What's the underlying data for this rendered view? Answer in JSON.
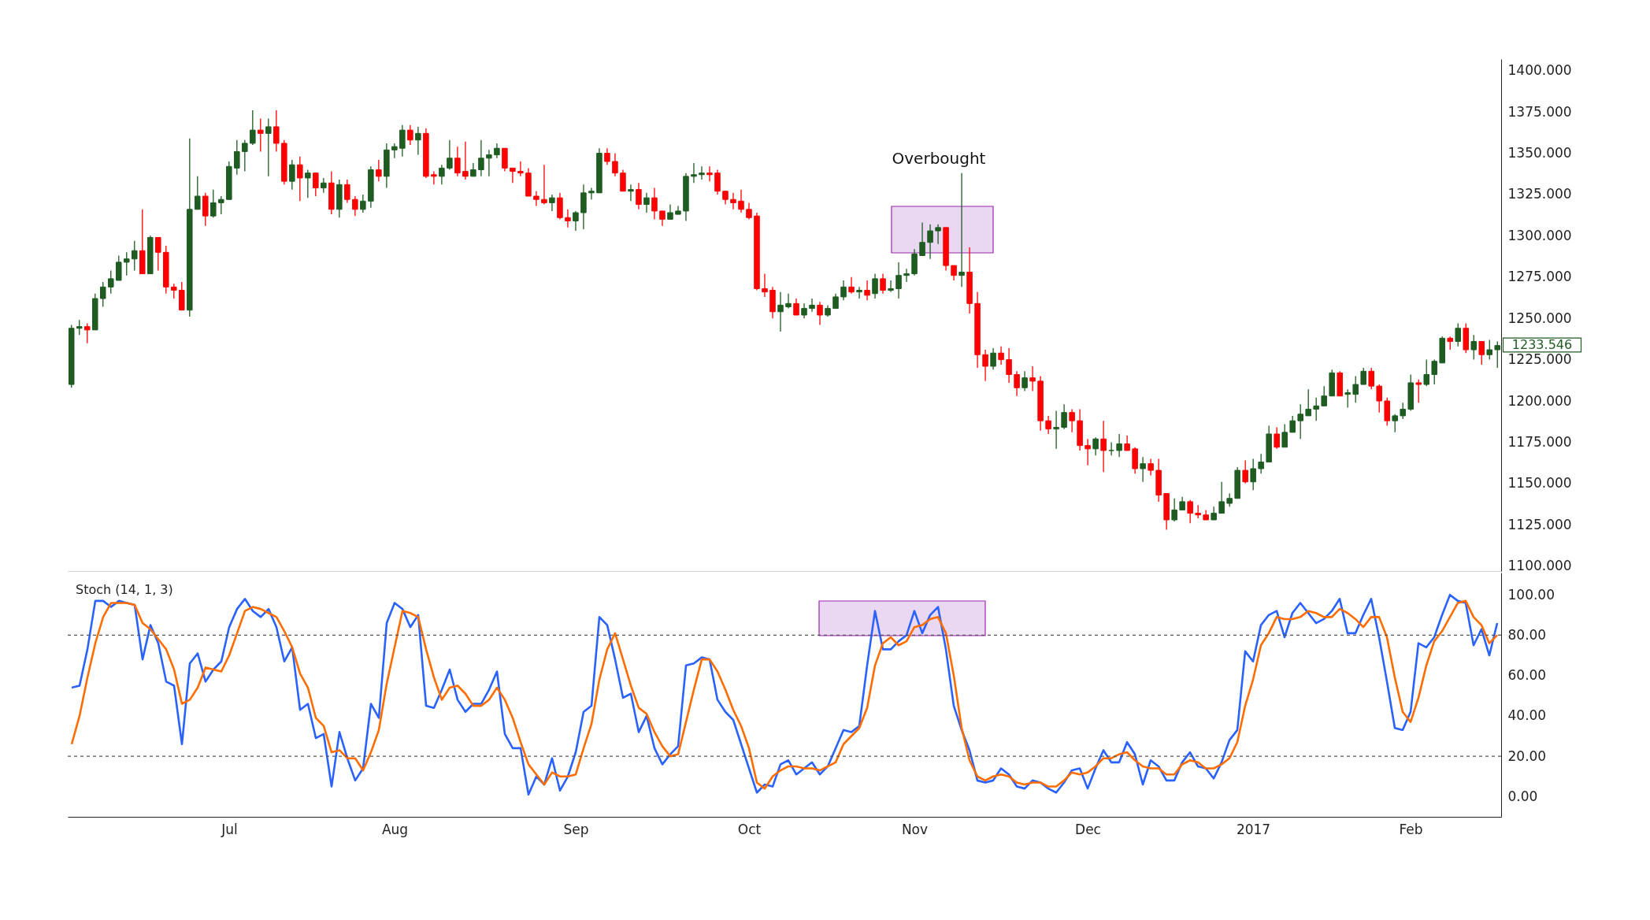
{
  "chart_data": [
    {
      "type": "candlestick",
      "categories": [
        null,
        null,
        null,
        null,
        null,
        null,
        null,
        null,
        null,
        null,
        null,
        null,
        null,
        null,
        null,
        null,
        null,
        null,
        null,
        null,
        null,
        null,
        null,
        null,
        null,
        null,
        null,
        null,
        null,
        null,
        null,
        null,
        null,
        null,
        null,
        null,
        null,
        null,
        null,
        null,
        null,
        null,
        null,
        null,
        null,
        null,
        null,
        null,
        null,
        null,
        null,
        null,
        null,
        null,
        null,
        null,
        null,
        null,
        null,
        null,
        null,
        null,
        null,
        null,
        null,
        null,
        null,
        null,
        null,
        null,
        null,
        null,
        null,
        null,
        null,
        null,
        null,
        null,
        null,
        null,
        null,
        null,
        null,
        null,
        null,
        null,
        null,
        null,
        null,
        null,
        null,
        null,
        null,
        null,
        null,
        null,
        null,
        null,
        null,
        null,
        null,
        null,
        null,
        null,
        null,
        null,
        null,
        null,
        null,
        null,
        null,
        null,
        null,
        null,
        null,
        null,
        null,
        null,
        null,
        null,
        null,
        null,
        null,
        null,
        null,
        null,
        null,
        null,
        null,
        null,
        null,
        null,
        null,
        null,
        null,
        null,
        null,
        null,
        null,
        null,
        null,
        null,
        null,
        null,
        null,
        null,
        null,
        null,
        null,
        null,
        null,
        null,
        null,
        null,
        null,
        null,
        null,
        null,
        null,
        null,
        null,
        null,
        null,
        null,
        null,
        null,
        null,
        null,
        null,
        null,
        null,
        null,
        null,
        null,
        null,
        null,
        null,
        null,
        null,
        null,
        null,
        null
      ],
      "ohlc": [
        [
          1210,
          1246,
          1208,
          1244
        ],
        [
          1244,
          1249,
          1240,
          1245
        ],
        [
          1245,
          1247,
          1235,
          1243
        ],
        [
          1243,
          1265,
          1243,
          1262
        ],
        [
          1262,
          1272,
          1257,
          1269
        ],
        [
          1269,
          1279,
          1265,
          1274
        ],
        [
          1273,
          1288,
          1273,
          1284
        ],
        [
          1284,
          1290,
          1276,
          1286
        ],
        [
          1286,
          1297,
          1279,
          1291
        ],
        [
          1291,
          1316,
          1277,
          1277
        ],
        [
          1277,
          1300,
          1277,
          1299
        ],
        [
          1299,
          1299,
          1279,
          1290
        ],
        [
          1290,
          1294,
          1265,
          1269
        ],
        [
          1269,
          1271,
          1262,
          1267
        ],
        [
          1267,
          1272,
          1255,
          1255
        ],
        [
          1255,
          1359,
          1251,
          1316
        ],
        [
          1316,
          1336,
          1316,
          1324
        ],
        [
          1324,
          1326,
          1306,
          1312
        ],
        [
          1312,
          1328,
          1311,
          1320
        ],
        [
          1320,
          1324,
          1313,
          1322
        ],
        [
          1322,
          1345,
          1322,
          1342
        ],
        [
          1341,
          1358,
          1337,
          1351
        ],
        [
          1351,
          1358,
          1339,
          1356
        ],
        [
          1356,
          1376,
          1355,
          1364
        ],
        [
          1364,
          1371,
          1351,
          1362
        ],
        [
          1362,
          1371,
          1336,
          1366
        ],
        [
          1366,
          1376,
          1351,
          1356
        ],
        [
          1356,
          1358,
          1331,
          1333
        ],
        [
          1333,
          1346,
          1328,
          1343
        ],
        [
          1343,
          1348,
          1321,
          1335
        ],
        [
          1335,
          1340,
          1323,
          1338
        ],
        [
          1338,
          1338,
          1324,
          1329
        ],
        [
          1329,
          1335,
          1326,
          1332
        ],
        [
          1332,
          1339,
          1313,
          1316
        ],
        [
          1316,
          1334,
          1311,
          1331
        ],
        [
          1331,
          1334,
          1320,
          1322
        ],
        [
          1322,
          1324,
          1312,
          1316
        ],
        [
          1316,
          1325,
          1314,
          1321
        ],
        [
          1321,
          1342,
          1317,
          1340
        ],
        [
          1340,
          1346,
          1333,
          1336
        ],
        [
          1336,
          1356,
          1329,
          1352
        ],
        [
          1352,
          1356,
          1347,
          1354
        ],
        [
          1353,
          1367,
          1348,
          1364
        ],
        [
          1364,
          1367,
          1355,
          1358
        ],
        [
          1358,
          1366,
          1349,
          1362
        ],
        [
          1362,
          1365,
          1335,
          1336
        ],
        [
          1337,
          1339,
          1331,
          1336
        ],
        [
          1336,
          1343,
          1331,
          1341
        ],
        [
          1341,
          1358,
          1340,
          1347
        ],
        [
          1347,
          1354,
          1336,
          1338
        ],
        [
          1339,
          1357,
          1334,
          1336
        ],
        [
          1336,
          1344,
          1336,
          1340
        ],
        [
          1340,
          1358,
          1336,
          1347
        ],
        [
          1347,
          1352,
          1336,
          1349
        ],
        [
          1349,
          1356,
          1347,
          1353
        ],
        [
          1353,
          1353,
          1339,
          1341
        ],
        [
          1341,
          1341,
          1332,
          1339
        ],
        [
          1339,
          1345,
          1336,
          1338
        ],
        [
          1338,
          1341,
          1324,
          1324
        ],
        [
          1324,
          1327,
          1318,
          1322
        ],
        [
          1322,
          1343,
          1319,
          1320
        ],
        [
          1320,
          1325,
          1315,
          1323
        ],
        [
          1323,
          1326,
          1310,
          1311
        ],
        [
          1311,
          1316,
          1305,
          1309
        ],
        [
          1309,
          1315,
          1303,
          1314
        ],
        [
          1314,
          1331,
          1304,
          1326
        ],
        [
          1326,
          1329,
          1322,
          1327
        ],
        [
          1326,
          1353,
          1326,
          1350
        ],
        [
          1350,
          1353,
          1343,
          1345
        ],
        [
          1345,
          1350,
          1336,
          1338
        ],
        [
          1338,
          1340,
          1327,
          1327
        ],
        [
          1327,
          1331,
          1321,
          1328
        ],
        [
          1328,
          1332,
          1316,
          1319
        ],
        [
          1319,
          1326,
          1314,
          1323
        ],
        [
          1323,
          1329,
          1310,
          1315
        ],
        [
          1315,
          1315,
          1306,
          1310
        ],
        [
          1310,
          1319,
          1310,
          1314
        ],
        [
          1313,
          1318,
          1313,
          1315
        ],
        [
          1315,
          1338,
          1309,
          1336
        ],
        [
          1336,
          1344,
          1332,
          1337
        ],
        [
          1337,
          1342,
          1334,
          1338
        ],
        [
          1338,
          1342,
          1333,
          1337
        ],
        [
          1338,
          1340,
          1325,
          1327
        ],
        [
          1327,
          1327,
          1319,
          1322
        ],
        [
          1322,
          1326,
          1316,
          1320
        ],
        [
          1321,
          1328,
          1314,
          1316
        ],
        [
          1316,
          1320,
          1310,
          1311
        ],
        [
          1312,
          1314,
          1267,
          1268
        ],
        [
          1268,
          1277,
          1263,
          1266
        ],
        [
          1267,
          1269,
          1250,
          1254
        ],
        [
          1254,
          1266,
          1242,
          1258
        ],
        [
          1257,
          1265,
          1256,
          1259
        ],
        [
          1259,
          1262,
          1252,
          1252
        ],
        [
          1252,
          1259,
          1250,
          1256
        ],
        [
          1256,
          1262,
          1254,
          1258
        ],
        [
          1258,
          1260,
          1246,
          1252
        ],
        [
          1252,
          1258,
          1251,
          1256
        ],
        [
          1256,
          1265,
          1256,
          1263
        ],
        [
          1263,
          1273,
          1261,
          1269
        ],
        [
          1269,
          1275,
          1265,
          1266
        ],
        [
          1266,
          1269,
          1262,
          1267
        ],
        [
          1267,
          1273,
          1261,
          1264
        ],
        [
          1265,
          1277,
          1262,
          1274
        ],
        [
          1274,
          1277,
          1265,
          1267
        ],
        [
          1267,
          1273,
          1266,
          1268
        ],
        [
          1268,
          1284,
          1262,
          1276
        ],
        [
          1276,
          1280,
          1272,
          1277
        ],
        [
          1277,
          1292,
          1276,
          1289
        ],
        [
          1288,
          1308,
          1288,
          1296
        ],
        [
          1296,
          1307,
          1286,
          1303
        ],
        [
          1303,
          1307,
          1295,
          1305
        ],
        [
          1305,
          1305,
          1279,
          1282
        ],
        [
          1282,
          1282,
          1273,
          1276
        ],
        [
          1276,
          1338,
          1269,
          1278
        ],
        [
          1278,
          1293,
          1253,
          1259
        ],
        [
          1259,
          1266,
          1220,
          1228
        ],
        [
          1228,
          1231,
          1212,
          1221
        ],
        [
          1221,
          1232,
          1219,
          1229
        ],
        [
          1229,
          1233,
          1222,
          1225
        ],
        [
          1225,
          1232,
          1211,
          1216
        ],
        [
          1216,
          1218,
          1203,
          1208
        ],
        [
          1208,
          1218,
          1206,
          1214
        ],
        [
          1214,
          1221,
          1206,
          1212
        ],
        [
          1212,
          1215,
          1182,
          1188
        ],
        [
          1188,
          1191,
          1180,
          1183
        ],
        [
          1183,
          1194,
          1171,
          1184
        ],
        [
          1184,
          1198,
          1183,
          1193
        ],
        [
          1193,
          1195,
          1181,
          1188
        ],
        [
          1188,
          1195,
          1170,
          1173
        ],
        [
          1173,
          1177,
          1161,
          1171
        ],
        [
          1171,
          1178,
          1167,
          1177
        ],
        [
          1177,
          1188,
          1157,
          1170
        ],
        [
          1170,
          1175,
          1167,
          1170
        ],
        [
          1170,
          1180,
          1166,
          1174
        ],
        [
          1174,
          1179,
          1170,
          1170
        ],
        [
          1171,
          1172,
          1156,
          1159
        ],
        [
          1159,
          1166,
          1151,
          1162
        ],
        [
          1162,
          1165,
          1155,
          1158
        ],
        [
          1158,
          1165,
          1139,
          1143
        ],
        [
          1144,
          1144,
          1122,
          1128
        ],
        [
          1128,
          1141,
          1127,
          1134
        ],
        [
          1134,
          1142,
          1134,
          1139
        ],
        [
          1139,
          1140,
          1126,
          1132
        ],
        [
          1132,
          1137,
          1129,
          1131
        ],
        [
          1131,
          1134,
          1128,
          1128
        ],
        [
          1128,
          1136,
          1128,
          1132
        ],
        [
          1132,
          1151,
          1132,
          1139
        ],
        [
          1138,
          1144,
          1136,
          1141
        ],
        [
          1141,
          1160,
          1141,
          1158
        ],
        [
          1158,
          1164,
          1150,
          1151
        ],
        [
          1151,
          1165,
          1146,
          1159
        ],
        [
          1159,
          1168,
          1156,
          1163
        ],
        [
          1163,
          1185,
          1163,
          1180
        ],
        [
          1180,
          1184,
          1171,
          1172
        ],
        [
          1172,
          1186,
          1172,
          1181
        ],
        [
          1181,
          1191,
          1181,
          1188
        ],
        [
          1188,
          1198,
          1177,
          1192
        ],
        [
          1191,
          1207,
          1191,
          1195
        ],
        [
          1195,
          1202,
          1188,
          1197
        ],
        [
          1197,
          1209,
          1197,
          1203
        ],
        [
          1203,
          1219,
          1203,
          1217
        ],
        [
          1217,
          1218,
          1203,
          1203
        ],
        [
          1204,
          1207,
          1196,
          1205
        ],
        [
          1204,
          1215,
          1199,
          1210
        ],
        [
          1210,
          1220,
          1210,
          1218
        ],
        [
          1218,
          1220,
          1207,
          1209
        ],
        [
          1209,
          1210,
          1193,
          1200
        ],
        [
          1200,
          1202,
          1185,
          1188
        ],
        [
          1188,
          1192,
          1181,
          1191
        ],
        [
          1191,
          1199,
          1189,
          1195
        ],
        [
          1195,
          1216,
          1194,
          1211
        ],
        [
          1211,
          1213,
          1199,
          1210
        ],
        [
          1210,
          1225,
          1209,
          1216
        ],
        [
          1216,
          1225,
          1210,
          1224
        ],
        [
          1223,
          1239,
          1223,
          1238
        ],
        [
          1238,
          1239,
          1231,
          1236
        ],
        [
          1236,
          1247,
          1233,
          1244
        ],
        [
          1244,
          1247,
          1229,
          1231
        ],
        [
          1231,
          1240,
          1225,
          1236
        ],
        [
          1236,
          1236,
          1222,
          1228
        ],
        [
          1228,
          1237,
          1225,
          1231
        ],
        [
          1231,
          1236,
          1220,
          1233.546
        ]
      ],
      "ylim": [
        1097,
        1407
      ],
      "yticks": [
        {
          "value": 1100,
          "label": "1100.000"
        },
        {
          "value": 1125,
          "label": "1125.000"
        },
        {
          "value": 1150,
          "label": "1150.000"
        },
        {
          "value": 1175,
          "label": "1175.000"
        },
        {
          "value": 1200,
          "label": "1200.000"
        },
        {
          "value": 1225,
          "label": "1225.000"
        },
        {
          "value": 1250,
          "label": "1250.000"
        },
        {
          "value": 1275,
          "label": "1275.000"
        },
        {
          "value": 1300,
          "label": "1300.000"
        },
        {
          "value": 1325,
          "label": "1325.000"
        },
        {
          "value": 1350,
          "label": "1350.000"
        },
        {
          "value": 1375,
          "label": "1375.000"
        },
        {
          "value": 1400,
          "label": "1400.000"
        }
      ],
      "tick_labels": "y",
      "grid": false,
      "annotations": [
        "Overbought",
        "1233.546"
      ]
    },
    {
      "type": "line",
      "title": "Stoch (14, 1, 3)",
      "categories": [
        null,
        null,
        null,
        null,
        null,
        null,
        null,
        null,
        null,
        null,
        null,
        null,
        null,
        null,
        null,
        null,
        null,
        null,
        null,
        null,
        "Jul",
        null,
        null,
        null,
        null,
        null,
        null,
        null,
        null,
        null,
        null,
        null,
        null,
        null,
        null,
        null,
        null,
        null,
        null,
        null,
        null,
        "Aug",
        null,
        null,
        null,
        null,
        null,
        null,
        null,
        null,
        null,
        null,
        null,
        null,
        null,
        null,
        null,
        null,
        null,
        null,
        null,
        null,
        null,
        null,
        "Sep",
        null,
        null,
        null,
        null,
        null,
        null,
        null,
        null,
        null,
        null,
        null,
        null,
        null,
        null,
        null,
        null,
        null,
        null,
        null,
        null,
        null,
        "Oct",
        null,
        null,
        null,
        null,
        null,
        null,
        null,
        null,
        null,
        null,
        null,
        null,
        null,
        null,
        null,
        null,
        null,
        null,
        null,
        null,
        "Nov",
        null,
        null,
        null,
        null,
        null,
        null,
        null,
        null,
        null,
        null,
        null,
        null,
        null,
        null,
        null,
        null,
        null,
        null,
        null,
        null,
        null,
        "Dec",
        null,
        null,
        null,
        null,
        null,
        null,
        null,
        null,
        null,
        null,
        null,
        null,
        null,
        null,
        null,
        null,
        null,
        null,
        null,
        null,
        "2017",
        null,
        null,
        null,
        null,
        null,
        null,
        null,
        null,
        null,
        null,
        null,
        null,
        null,
        null,
        null,
        null,
        null,
        null,
        null,
        "Feb",
        null,
        null,
        null,
        null,
        null,
        null,
        null,
        null,
        null,
        null,
        null
      ],
      "series": [
        {
          "color": "#2962ff",
          "values": [
            54,
            55,
            73,
            97,
            97,
            94,
            97,
            96,
            95,
            68,
            85,
            76,
            57,
            55,
            26,
            66,
            71,
            57,
            63,
            67,
            84,
            93,
            98,
            92,
            89,
            93,
            84,
            67,
            74,
            43,
            46,
            29,
            31,
            5,
            32,
            19,
            8,
            14,
            46,
            39,
            86,
            96,
            93,
            84,
            90,
            45,
            44,
            53,
            63,
            48,
            42,
            46,
            46,
            53,
            62,
            31,
            24,
            24,
            1,
            10,
            6,
            19,
            3,
            10,
            22,
            42,
            45,
            89,
            85,
            68,
            49,
            51,
            32,
            40,
            24,
            16,
            21,
            25,
            65,
            66,
            69,
            68,
            48,
            42,
            38,
            26,
            14,
            2,
            6,
            5,
            16,
            18,
            11,
            14,
            17,
            11,
            15,
            24,
            33,
            32,
            35,
            65,
            92,
            73,
            73,
            77,
            80,
            92,
            81,
            90,
            94,
            73,
            45,
            33,
            23,
            8,
            7,
            8,
            14,
            11,
            5,
            4,
            8,
            7,
            4,
            2,
            7,
            13,
            14,
            4,
            14,
            23,
            17,
            17,
            27,
            21,
            6,
            18,
            15,
            8,
            8,
            17,
            22,
            15,
            14,
            9,
            17,
            28,
            33,
            72,
            67,
            85,
            90,
            92,
            79,
            91,
            96,
            91,
            86,
            88,
            92,
            98,
            81,
            81,
            90,
            98,
            79,
            57,
            34,
            33,
            42,
            76,
            74,
            79,
            90,
            100,
            97,
            96,
            75,
            83,
            70,
            86
          ]
        },
        {
          "color": "#ff6d00",
          "values": [
            26,
            40,
            59,
            76,
            89,
            96,
            96,
            96,
            95,
            86,
            83,
            78,
            73,
            63,
            46,
            48,
            54,
            64,
            63,
            62,
            70,
            81,
            92,
            94,
            93,
            91,
            89,
            82,
            74,
            61,
            54,
            39,
            35,
            22,
            23,
            19,
            19,
            13,
            22,
            33,
            56,
            74,
            92,
            91,
            89,
            73,
            59,
            48,
            54,
            55,
            51,
            45,
            45,
            48,
            54,
            48,
            39,
            27,
            16,
            11,
            6,
            12,
            10,
            10,
            11,
            24,
            36,
            58,
            73,
            81,
            68,
            55,
            44,
            41,
            32,
            25,
            20,
            21,
            37,
            53,
            68,
            68,
            62,
            53,
            43,
            35,
            24,
            7,
            4,
            10,
            13,
            15,
            15,
            14,
            14,
            13,
            15,
            17,
            26,
            30,
            34,
            44,
            65,
            76,
            79,
            75,
            77,
            84,
            85,
            88,
            89,
            81,
            60,
            34,
            18,
            10,
            8,
            10,
            11,
            10,
            7,
            6,
            7,
            7,
            5,
            5,
            8,
            12,
            11,
            12,
            15,
            19,
            19,
            21,
            22,
            18,
            15,
            14,
            14,
            11,
            11,
            16,
            18,
            17,
            14,
            14,
            16,
            19,
            27,
            45,
            58,
            75,
            81,
            89,
            88,
            88,
            89,
            92,
            91,
            89,
            89,
            93,
            91,
            88,
            84,
            89,
            89,
            79,
            59,
            42,
            37,
            49,
            65,
            77,
            82,
            89,
            96,
            97,
            89,
            85,
            76,
            80
          ]
        }
      ],
      "ylim": [
        -10,
        111
      ],
      "yticks": [
        {
          "value": 0,
          "label": "0.00"
        },
        {
          "value": 20,
          "label": "20.00"
        },
        {
          "value": 40,
          "label": "40.00"
        },
        {
          "value": 60,
          "label": "60.00"
        },
        {
          "value": 80,
          "label": "80.00"
        },
        {
          "value": 100,
          "label": "100.00"
        }
      ],
      "grid": false,
      "marker": "none",
      "line_style": "solid",
      "ref_lines": [
        {
          "axis": "y",
          "value": 80,
          "color": "#555555",
          "line_style": "dashed"
        },
        {
          "axis": "y",
          "value": 20,
          "color": "#555555",
          "line_style": "dashed"
        }
      ]
    }
  ]
}
